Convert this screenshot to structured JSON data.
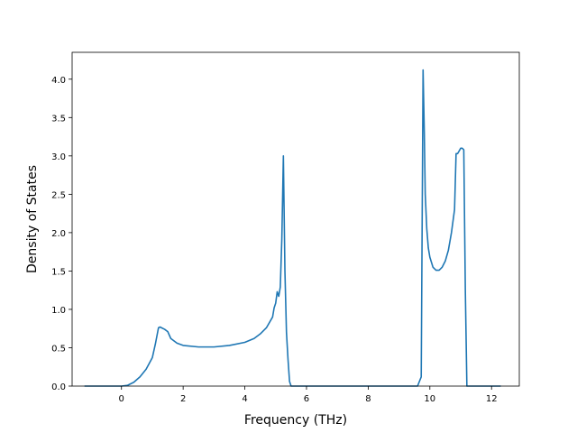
{
  "chart_data": {
    "type": "line",
    "xlabel": "Frequency (THz)",
    "ylabel": "Density of States",
    "xlim": [
      -1.6,
      12.9
    ],
    "ylim": [
      0.0,
      4.35
    ],
    "xticks": [
      0,
      2,
      4,
      6,
      8,
      10,
      12
    ],
    "yticks": [
      0.0,
      0.5,
      1.0,
      1.5,
      2.0,
      2.5,
      3.0,
      3.5,
      4.0
    ],
    "xtick_labels": [
      "0",
      "2",
      "4",
      "6",
      "8",
      "10",
      "12"
    ],
    "ytick_labels": [
      "0.0",
      "0.5",
      "1.0",
      "1.5",
      "2.0",
      "2.5",
      "3.0",
      "3.5",
      "4.0"
    ],
    "grid": false,
    "line_color": "#1f77b4",
    "series": [
      {
        "x": [
          -1.2,
          0.0,
          0.2,
          0.4,
          0.6,
          0.8,
          1.0,
          1.1,
          1.2,
          1.25,
          1.3,
          1.4,
          1.5,
          1.6,
          1.8,
          2.0,
          2.5,
          3.0,
          3.5,
          4.0,
          4.3,
          4.5,
          4.7,
          4.9,
          4.95,
          5.0,
          5.05,
          5.1,
          5.15,
          5.2,
          5.25,
          5.3,
          5.35,
          5.4,
          5.45,
          5.5,
          6.0,
          8.0,
          9.6,
          9.72,
          9.78,
          9.82,
          9.85,
          9.9,
          9.95,
          10.0,
          10.1,
          10.2,
          10.3,
          10.4,
          10.5,
          10.6,
          10.7,
          10.8,
          10.85,
          10.9,
          11.0,
          11.05,
          11.1,
          11.15,
          11.2,
          11.3,
          12.3
        ],
        "y": [
          0.0,
          0.0,
          0.01,
          0.05,
          0.12,
          0.22,
          0.37,
          0.55,
          0.76,
          0.77,
          0.76,
          0.74,
          0.71,
          0.62,
          0.56,
          0.53,
          0.51,
          0.51,
          0.53,
          0.57,
          0.62,
          0.68,
          0.76,
          0.9,
          1.02,
          1.08,
          1.23,
          1.17,
          1.29,
          1.92,
          3.0,
          1.5,
          0.7,
          0.35,
          0.06,
          0.0,
          0.0,
          0.0,
          0.0,
          0.12,
          4.12,
          3.3,
          2.5,
          2.05,
          1.8,
          1.68,
          1.55,
          1.51,
          1.51,
          1.55,
          1.63,
          1.77,
          2.0,
          2.3,
          3.03,
          3.03,
          3.1,
          3.1,
          3.08,
          1.25,
          0.0,
          0.0,
          0.0
        ]
      }
    ]
  }
}
